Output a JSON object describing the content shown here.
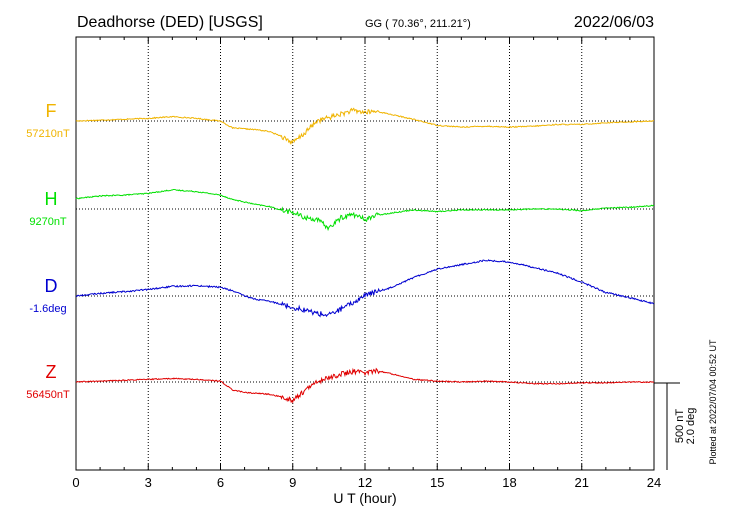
{
  "header": {
    "station": "Deadhorse (DED)  [USGS]",
    "coords": "GG ( 70.36°, 211.21°)",
    "date": "2022/06/03"
  },
  "side_note": "Plotted at 2022/07/04 00:52 UT",
  "scale_bar": {
    "line1": "500 nT",
    "line2": "2.0 deg"
  },
  "colors": {
    "F": "#f0b400",
    "H": "#00e000",
    "D": "#0000d0",
    "Z": "#e00000",
    "grid": "#000000"
  },
  "chart_data": {
    "type": "line",
    "xlabel": "U T (hour)",
    "xlim": [
      0,
      24
    ],
    "xticks": [
      "0",
      "3",
      "6",
      "9",
      "12",
      "15",
      "18",
      "21",
      "24"
    ],
    "grid": "dotted vertical at 3-hour intervals, dotted baseline per component",
    "x": [
      0,
      1,
      2,
      3,
      4,
      5,
      6,
      6.5,
      7,
      7.5,
      8,
      8.5,
      9,
      9.5,
      10,
      10.5,
      11,
      11.5,
      12,
      12.5,
      13,
      13.5,
      14,
      15,
      16,
      17,
      18,
      19,
      20,
      21,
      22,
      23,
      24
    ],
    "series": [
      {
        "name": "F",
        "baseline_label": "57210nT",
        "unit": "nT",
        "values": [
          0,
          5,
          10,
          15,
          25,
          15,
          0,
          -40,
          -45,
          -50,
          -60,
          -85,
          -125,
          -70,
          0,
          20,
          40,
          60,
          50,
          55,
          40,
          25,
          10,
          -25,
          -35,
          -30,
          -35,
          -30,
          -20,
          -20,
          -10,
          -5,
          0
        ]
      },
      {
        "name": "H",
        "baseline_label": "9270nT",
        "unit": "nT",
        "values": [
          60,
          75,
          80,
          90,
          110,
          100,
          80,
          55,
          40,
          25,
          15,
          -5,
          -20,
          -50,
          -60,
          -110,
          -50,
          -30,
          -60,
          -35,
          -25,
          -15,
          -5,
          -15,
          -5,
          -5,
          -5,
          0,
          0,
          -10,
          5,
          10,
          20
        ]
      },
      {
        "name": "D",
        "baseline_label": "-1.6deg",
        "unit": "deg",
        "values": [
          0.0,
          0.06,
          0.1,
          0.15,
          0.22,
          0.24,
          0.2,
          0.12,
          0.0,
          -0.08,
          -0.12,
          -0.18,
          -0.26,
          -0.32,
          -0.4,
          -0.44,
          -0.3,
          -0.16,
          0.02,
          0.1,
          0.18,
          0.3,
          0.42,
          0.62,
          0.72,
          0.82,
          0.78,
          0.66,
          0.52,
          0.32,
          0.08,
          -0.04,
          -0.18
        ]
      },
      {
        "name": "Z",
        "baseline_label": "56450nT",
        "unit": "nT",
        "values": [
          0,
          5,
          10,
          15,
          20,
          15,
          5,
          -45,
          -60,
          -65,
          -70,
          -85,
          -105,
          -50,
          0,
          25,
          45,
          60,
          55,
          65,
          50,
          35,
          15,
          5,
          0,
          5,
          0,
          -10,
          -10,
          -5,
          -5,
          0,
          0
        ]
      }
    ]
  }
}
